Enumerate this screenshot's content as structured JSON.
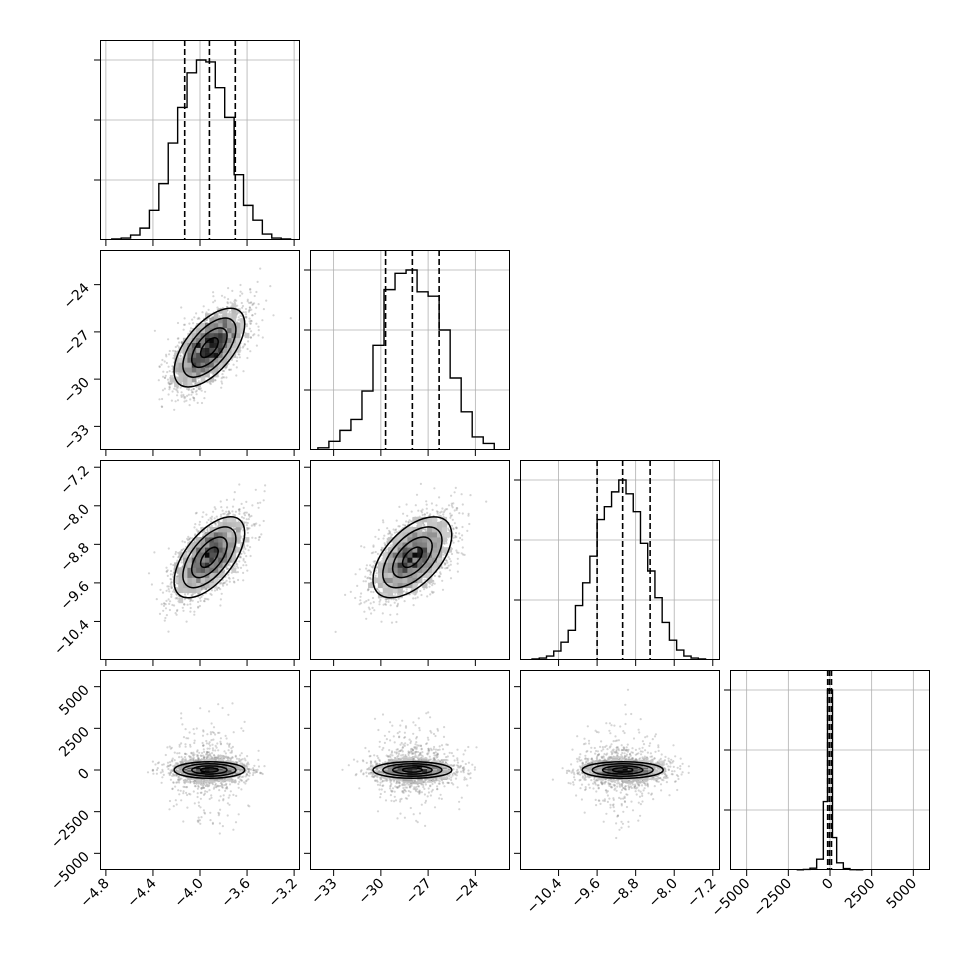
{
  "chart_data": {
    "type": "corner",
    "variables": [
      {
        "index": 0,
        "lim": [
          -4.85,
          -3.15
        ],
        "ticks": [
          -4.8,
          -4.4,
          -4.0,
          -3.6,
          -3.2
        ],
        "tick_labels": [
          "−4.8",
          "−4.4",
          "−4.0",
          "−3.6",
          "−3.2"
        ],
        "quantiles": [
          -4.13,
          -3.92,
          -3.7
        ],
        "hist_edges": [
          -4.75,
          -4.67,
          -4.59,
          -4.51,
          -4.43,
          -4.35,
          -4.27,
          -4.19,
          -4.11,
          -4.03,
          -3.95,
          -3.87,
          -3.79,
          -3.71,
          -3.63,
          -3.55,
          -3.47,
          -3.39,
          -3.31,
          -3.23
        ],
        "hist_counts": [
          1,
          2,
          5,
          12,
          30,
          57,
          98,
          134,
          169,
          182,
          180,
          154,
          124,
          66,
          35,
          20,
          6,
          2,
          1
        ]
      },
      {
        "index": 1,
        "lim": [
          -34.5,
          -21.8
        ],
        "ticks": [
          -33,
          -30,
          -27,
          -24
        ],
        "tick_labels": [
          "−33",
          "−30",
          "−27",
          "−24"
        ],
        "quantiles": [
          -29.7,
          -28.0,
          -26.3
        ],
        "hist_edges": [
          -34.0,
          -33.3,
          -32.6,
          -31.9,
          -31.2,
          -30.5,
          -29.8,
          -29.1,
          -28.4,
          -27.7,
          -27.0,
          -26.3,
          -25.6,
          -24.9,
          -24.2,
          -23.5,
          -22.8
        ],
        "hist_counts": [
          2,
          8,
          18,
          28,
          54,
          96,
          147,
          162,
          165,
          145,
          141,
          110,
          66,
          35,
          12,
          6
        ]
      },
      {
        "index": 2,
        "lim": [
          -11.2,
          -7.05
        ],
        "ticks": [
          -10.4,
          -9.6,
          -8.8,
          -8.0,
          -7.2
        ],
        "tick_labels": [
          "−10.4",
          "−9.6",
          "−8.8",
          "−8.0",
          "−7.2"
        ],
        "quantiles": [
          -9.6,
          -9.07,
          -8.5
        ],
        "hist_edges": [
          -10.95,
          -10.8,
          -10.65,
          -10.5,
          -10.35,
          -10.2,
          -10.05,
          -9.9,
          -9.75,
          -9.6,
          -9.45,
          -9.3,
          -9.15,
          -9.0,
          -8.85,
          -8.7,
          -8.55,
          -8.4,
          -8.25,
          -8.1,
          -7.95,
          -7.8,
          -7.65,
          -7.5,
          -7.35
        ],
        "hist_counts": [
          1,
          2,
          4,
          9,
          18,
          30,
          55,
          78,
          105,
          142,
          155,
          170,
          182,
          168,
          150,
          118,
          90,
          63,
          38,
          20,
          10,
          4,
          2,
          1
        ]
      },
      {
        "index": 3,
        "lim": [
          -6000,
          6000
        ],
        "ticks": [
          -5000,
          -2500,
          0,
          2500,
          5000
        ],
        "tick_labels": [
          "−5000",
          "−2500",
          "0",
          "2500",
          "5000"
        ],
        "quantiles": [
          -140,
          -30,
          90
        ],
        "hist_edges": [
          -2000,
          -1600,
          -1200,
          -800,
          -400,
          -150,
          150,
          400,
          800,
          1200,
          1600,
          2000
        ],
        "hist_counts": [
          1,
          3,
          10,
          60,
          380,
          1000,
          180,
          40,
          8,
          2,
          1
        ]
      }
    ],
    "pairs": [
      {
        "row": 1,
        "col": 0,
        "mean": [
          -3.92,
          -28.0
        ],
        "std": [
          0.15,
          1.25
        ],
        "corr": 0.6,
        "n_points": 2600,
        "seed": 11,
        "grid": 24
      },
      {
        "row": 2,
        "col": 0,
        "mean": [
          -3.92,
          -9.07
        ],
        "std": [
          0.15,
          0.42
        ],
        "corr": 0.6,
        "n_points": 2600,
        "seed": 12,
        "grid": 24
      },
      {
        "row": 2,
        "col": 1,
        "mean": [
          -28.0,
          -9.07
        ],
        "std": [
          1.25,
          0.42
        ],
        "corr": 0.55,
        "n_points": 2600,
        "seed": 13,
        "grid": 24
      },
      {
        "row": 3,
        "col": 0,
        "mean": [
          -3.92,
          0
        ],
        "std": [
          0.15,
          330
        ],
        "corr": 0.0,
        "n_points": 2600,
        "seed": 14,
        "grid": 24,
        "heavy_tail": true
      },
      {
        "row": 3,
        "col": 1,
        "mean": [
          -28.0,
          0
        ],
        "std": [
          1.25,
          330
        ],
        "corr": 0.0,
        "n_points": 2600,
        "seed": 15,
        "grid": 24,
        "heavy_tail": true
      },
      {
        "row": 3,
        "col": 2,
        "mean": [
          -9.07,
          0
        ],
        "std": [
          0.42,
          330
        ],
        "corr": 0.0,
        "n_points": 2600,
        "seed": 16,
        "grid": 24,
        "heavy_tail": true
      }
    ],
    "contour_levels_sigma": [
      0.5,
      1.0,
      1.5,
      2.0
    ],
    "grid": true,
    "line_color": "#000000",
    "point_color": "#888888",
    "grid_color": "#b0b0b0"
  }
}
